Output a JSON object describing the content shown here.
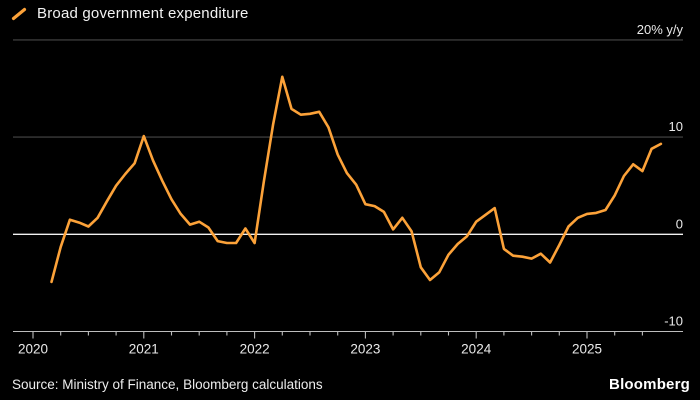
{
  "header": {
    "legend_label": "Broad government expenditure"
  },
  "footer": {
    "source": "Source: Ministry of Finance, Bloomberg calculations",
    "brand": "Bloomberg"
  },
  "colors": {
    "background": "#000000",
    "line": "#fca239",
    "grid": "#474747",
    "zero_line": "#f2f2f2",
    "axis_line": "#bdbdbd",
    "text": "#e9e9e9"
  },
  "chart_data": {
    "type": "line",
    "title": "Broad government expenditure",
    "unit_label": "20% y/y",
    "ylabel": "% y/y",
    "ylim": [
      -10,
      20
    ],
    "grid": true,
    "legend_position": "top-left",
    "frequency": "monthly",
    "x_range": {
      "start": "2020-03",
      "end": "2025-09"
    },
    "x_tick_labels": [
      "2020",
      "2021",
      "2022",
      "2023",
      "2024",
      "2025"
    ],
    "y_axis": {
      "ticks": [
        {
          "value": 20,
          "label": "20% y/y"
        },
        {
          "value": 10,
          "label": "10"
        },
        {
          "value": 0,
          "label": "0"
        },
        {
          "value": -10,
          "label": "-10"
        }
      ]
    },
    "series": [
      {
        "name": "Broad government expenditure",
        "color": "#fca239",
        "start_month": "2020-03",
        "values": [
          -4.9,
          -1.3,
          1.5,
          1.2,
          0.8,
          1.7,
          3.4,
          5.0,
          6.2,
          7.3,
          10.1,
          7.6,
          5.5,
          3.6,
          2.1,
          1.0,
          1.3,
          0.7,
          -0.7,
          -0.9,
          -0.9,
          0.6,
          -0.9,
          5.4,
          11.3,
          16.2,
          12.9,
          12.3,
          12.4,
          12.6,
          11.0,
          8.2,
          6.3,
          5.1,
          3.1,
          2.9,
          2.3,
          0.5,
          1.7,
          0.3,
          -3.4,
          -4.7,
          -3.9,
          -2.1,
          -1.0,
          -0.2,
          1.3,
          2.0,
          2.7,
          -1.5,
          -2.2,
          -2.3,
          -2.5,
          -2.0,
          -2.9,
          -1.1,
          0.8,
          1.7,
          2.1,
          2.2,
          2.5,
          4.0,
          6.0,
          7.2,
          6.5,
          8.8,
          9.3
        ]
      }
    ]
  }
}
